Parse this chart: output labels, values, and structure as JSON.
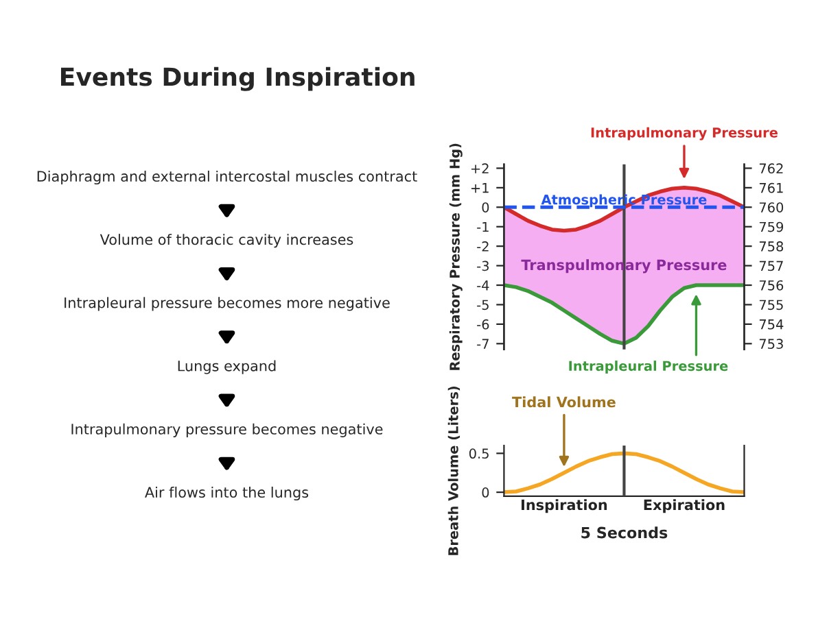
{
  "chart_data": [
    {
      "type": "other",
      "title": "Events During Inspiration",
      "annotations": [
        "Diaphragm and external intercostal muscles contract",
        "Volume of thoracic cavity increases",
        "Intrapleural pressure becomes more negative",
        "Lungs expand",
        "Intrapulmonary pressure becomes negative",
        "Air flows into the lungs"
      ]
    },
    {
      "type": "line",
      "ylabel": "Respiratory Pressure (mm Hg)",
      "categories": [
        null,
        null,
        null,
        null,
        null,
        null,
        null,
        null,
        null,
        null,
        null,
        null,
        null,
        null,
        null,
        null,
        null,
        null,
        null,
        null,
        null
      ],
      "tick_labels": "y",
      "ylim": [
        -7.3,
        2.2
      ],
      "yticks": [
        {
          "value": 2,
          "label": "+2"
        },
        {
          "value": 1,
          "label": "+1"
        },
        0,
        -1,
        -2,
        -3,
        -4,
        -5,
        -6,
        -7
      ],
      "y2lim": [
        752.7,
        762.2
      ],
      "y2ticks": [
        762,
        761,
        760,
        759,
        758,
        757,
        756,
        755,
        754,
        753
      ],
      "series": [
        {
          "color": "#d42a2a",
          "values": [
            0,
            -0.35,
            -0.7,
            -0.95,
            -1.15,
            -1.2,
            -1.15,
            -0.95,
            -0.7,
            -0.35,
            0,
            0.3,
            0.6,
            0.8,
            0.95,
            1.0,
            0.95,
            0.8,
            0.6,
            0.3,
            0
          ],
          "lower": [
            -4,
            -4.1,
            -4.3,
            -4.6,
            -4.9,
            -5.3,
            -5.7,
            -6.1,
            -6.5,
            -6.85,
            -7,
            -6.7,
            -6.1,
            -5.3,
            -4.6,
            -4.15,
            -4,
            -4,
            -4,
            -4,
            -4
          ],
          "upper": [
            0,
            -0.35,
            -0.7,
            -0.95,
            -1.15,
            -1.2,
            -1.15,
            -0.95,
            -0.7,
            -0.35,
            0,
            0.3,
            0.6,
            0.8,
            0.95,
            1.0,
            0.95,
            0.8,
            0.6,
            0.3,
            0
          ]
        },
        {
          "color": "#3a9a3a",
          "values": [
            -4,
            -4.1,
            -4.3,
            -4.6,
            -4.9,
            -5.3,
            -5.7,
            -6.1,
            -6.5,
            -6.85,
            -7,
            -6.7,
            -6.1,
            -5.3,
            -4.6,
            -4.15,
            -4,
            -4,
            -4,
            -4,
            -4
          ]
        }
      ],
      "ref_lines": [
        {
          "axis": "y",
          "value": 0,
          "label": "Atmospheric Pressure",
          "color": "#2255ee",
          "line_style": "dashed"
        }
      ],
      "annotations": [
        "Transpulmonary Pressure",
        "Intrapulmonary Pressure",
        "Intrapleural Pressure"
      ],
      "legend": false,
      "grid": false
    },
    {
      "type": "line",
      "ylabel": "Breath Volume (Liters)",
      "xlabel": "5 Seconds",
      "categories": [
        null,
        null,
        null,
        null,
        null,
        null,
        null,
        null,
        null,
        null,
        null,
        null,
        null,
        null,
        null,
        null,
        null,
        null,
        null,
        null,
        null
      ],
      "tick_labels": "y",
      "ylim": [
        -0.05,
        0.6
      ],
      "yticks": [
        0,
        0.5
      ],
      "series": [
        {
          "color": "#f5a623",
          "values": [
            0,
            0.01,
            0.05,
            0.1,
            0.17,
            0.25,
            0.33,
            0.4,
            0.45,
            0.49,
            0.5,
            0.49,
            0.45,
            0.4,
            0.33,
            0.25,
            0.17,
            0.1,
            0.05,
            0.01,
            0
          ]
        }
      ],
      "annotations": [
        "Inspiration",
        "Expiration",
        "Tidal Volume"
      ],
      "legend": false,
      "grid": false
    }
  ]
}
